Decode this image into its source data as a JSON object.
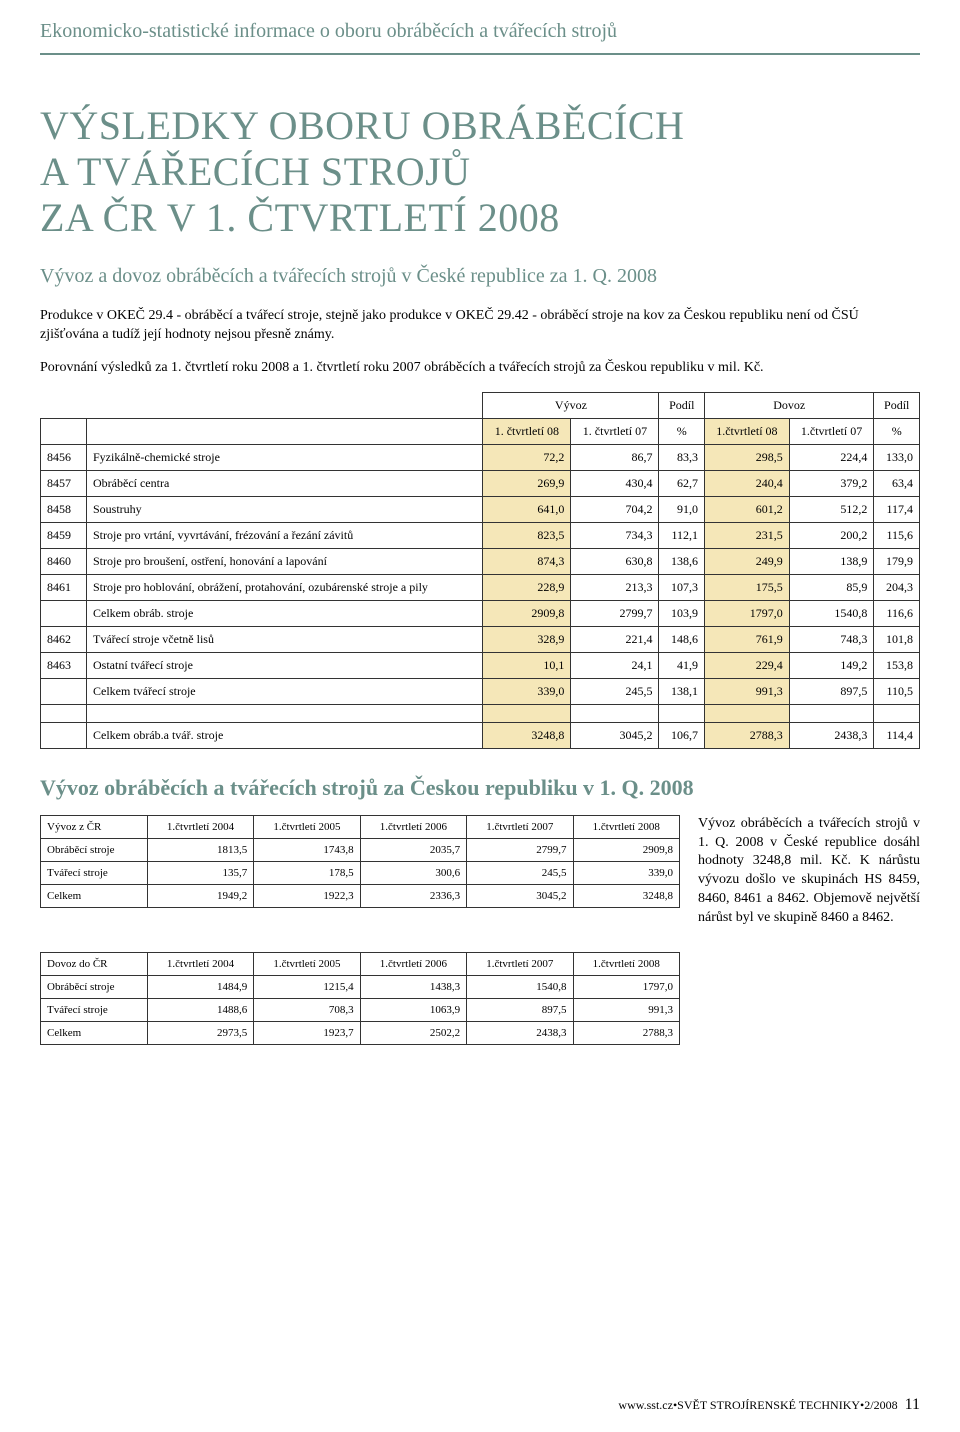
{
  "header": {
    "band": "Ekonomicko-statistické informace o oboru obráběcích a tvářecích strojů"
  },
  "title": {
    "line1": "VÝSLEDKY OBORU OBRÁBĚCÍCH",
    "line2": "A TVÁŘECÍCH STROJŮ",
    "line3": "ZA ČR V 1. ČTVRTLETÍ 2008"
  },
  "subtitle": "Vývoz a dovoz obráběcích a tvářecích strojů v České republice za 1. Q. 2008",
  "para1": "Produkce v OKEČ 29.4 - obráběcí a tvářecí stroje, stejně jako produkce v OKEČ 29.42 - obráběcí stroje na kov za Českou republiku není od ČSÚ zjišťována a tudíž její hodnoty nejsou přesně známy.",
  "para2": "Porovnání výsledků za 1. čtvrtletí roku 2008 a 1. čtvrtletí roku 2007 obráběcích a tvářecích strojů za Českou republiku v mil. Kč.",
  "mainTable": {
    "groupHeaders": {
      "vyvoz": "Vývoz",
      "podil1": "Podíl",
      "dovoz": "Dovoz",
      "podil2": "Podíl"
    },
    "colHeaders": {
      "c1": "1. čtvrtletí 08",
      "c2": "1. čtvrtletí 07",
      "c3": "%",
      "c4": "1.čtvrtletí 08",
      "c5": "1.čtvrtletí 07",
      "c6": "%"
    },
    "rows": [
      {
        "code": "8456",
        "label": "Fyzikálně-chemické stroje",
        "v": [
          "72,2",
          "86,7",
          "83,3",
          "298,5",
          "224,4",
          "133,0"
        ]
      },
      {
        "code": "8457",
        "label": "Obráběcí centra",
        "v": [
          "269,9",
          "430,4",
          "62,7",
          "240,4",
          "379,2",
          "63,4"
        ]
      },
      {
        "code": "8458",
        "label": "Soustruhy",
        "v": [
          "641,0",
          "704,2",
          "91,0",
          "601,2",
          "512,2",
          "117,4"
        ]
      },
      {
        "code": "8459",
        "label": "Stroje pro vrtání, vyvrtávání, frézování a řezání závitů",
        "v": [
          "823,5",
          "734,3",
          "112,1",
          "231,5",
          "200,2",
          "115,6"
        ]
      },
      {
        "code": "8460",
        "label": "Stroje pro broušení, ostření, honování a lapování",
        "v": [
          "874,3",
          "630,8",
          "138,6",
          "249,9",
          "138,9",
          "179,9"
        ]
      },
      {
        "code": "8461",
        "label": "Stroje pro hoblování, obrážení, protahování, ozubárenské stroje a pily",
        "v": [
          "228,9",
          "213,3",
          "107,3",
          "175,5",
          "85,9",
          "204,3"
        ]
      },
      {
        "code": "",
        "label": "Celkem obráb. stroje",
        "v": [
          "2909,8",
          "2799,7",
          "103,9",
          "1797,0",
          "1540,8",
          "116,6"
        ]
      },
      {
        "code": "8462",
        "label": "Tvářecí stroje včetně lisů",
        "v": [
          "328,9",
          "221,4",
          "148,6",
          "761,9",
          "748,3",
          "101,8"
        ]
      },
      {
        "code": "8463",
        "label": "Ostatní tvářecí stroje",
        "v": [
          "10,1",
          "24,1",
          "41,9",
          "229,4",
          "149,2",
          "153,8"
        ]
      },
      {
        "code": "",
        "label": "Celkem tvářecí stroje",
        "v": [
          "339,0",
          "245,5",
          "138,1",
          "991,3",
          "897,5",
          "110,5"
        ]
      }
    ],
    "totalRow": {
      "label": "Celkem obráb.a tvář. stroje",
      "v": [
        "3248,8",
        "3045,2",
        "106,7",
        "2788,3",
        "2438,3",
        "114,4"
      ]
    }
  },
  "section2": {
    "title": "Vývoz obráběcích a tvářecích strojů za Českou republiku v 1. Q. 2008",
    "sideText": "Vývoz obráběcích a tvářecích strojů v 1. Q. 2008 v České republice dosáhl hodnoty 3248,8 mil. Kč. K nárůstu vývozu došlo ve skupinách HS 8459, 8460, 8461 a 8462. Objemově největší nárůst byl ve skupině 8460 a 8462.",
    "exportTable": {
      "headers": [
        "Vývoz z ČR",
        "1.čtvrtletí 2004",
        "1.čtvrtletí 2005",
        "1.čtvrtletí 2006",
        "1.čtvrtletí 2007",
        "1.čtvrtletí 2008"
      ],
      "rows": [
        [
          "Obráběcí stroje",
          "1813,5",
          "1743,8",
          "2035,7",
          "2799,7",
          "2909,8"
        ],
        [
          "Tvářecí stroje",
          "135,7",
          "178,5",
          "300,6",
          "245,5",
          "339,0"
        ],
        [
          "Celkem",
          "1949,2",
          "1922,3",
          "2336,3",
          "3045,2",
          "3248,8"
        ]
      ]
    },
    "importTable": {
      "headers": [
        "Dovoz do ČR",
        "1.čtvrtletí 2004",
        "1.čtvrtletí 2005",
        "1.čtvrtletí 2006",
        "1.čtvrtletí 2007",
        "1.čtvrtletí 2008"
      ],
      "rows": [
        [
          "Obráběcí stroje",
          "1484,9",
          "1215,4",
          "1438,3",
          "1540,8",
          "1797,0"
        ],
        [
          "Tvářecí stroje",
          "1488,6",
          "708,3",
          "1063,9",
          "897,5",
          "991,3"
        ],
        [
          "Celkem",
          "2973,5",
          "1923,7",
          "2502,2",
          "2438,3",
          "2788,3"
        ]
      ]
    }
  },
  "footer": {
    "text": "www.sst.cz•SVĚT STROJÍRENSKÉ TECHNIKY•2/2008",
    "page": "11"
  },
  "style": {
    "highlight_color": "#f5e7b8",
    "accent_color": "#6b8f89",
    "border_color": "#333333",
    "background_color": "#ffffff"
  }
}
